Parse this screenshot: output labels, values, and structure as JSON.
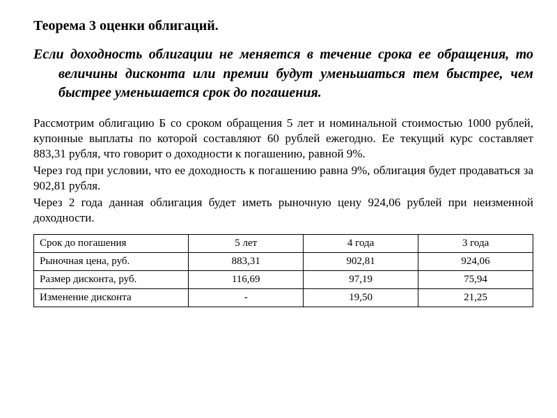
{
  "title": "Теорема 3 оценки облигаций.",
  "theorem": "Если доходность облигации не меняется в течение срока ее обращения, то величины дисконта или премии будут уменьшаться тем быстрее, чем быстрее уменьшается срок до погашения.",
  "paragraphs": [
    "Рассмотрим облигацию Б со сроком обращения 5 лет и номинальной стоимостью 1000 рублей, купонные выплаты по которой составляют 60 рублей ежегодно. Ее текущий курс составляет 883,31 рубля, что говорит о доходности к погашению, равной 9%.",
    "Через год при условии, что ее доходность к погашению равна 9%, облигация будет продаваться за 902,81 рубля.",
    "Через 2 года данная облигация будет иметь рыночную цену 924,06 рублей при неизменной доходности."
  ],
  "table": {
    "columns": [
      "Срок до погашения",
      "5 лет",
      "4 года",
      "3 года"
    ],
    "rows": [
      [
        "Рыночная цена, руб.",
        "883,31",
        "902,81",
        "924,06"
      ],
      [
        "Размер дисконта, руб.",
        "116,69",
        "97,19",
        "75,94"
      ],
      [
        "Изменение дисконта",
        "-",
        "19,50",
        "21,25"
      ]
    ],
    "border_color": "#000000",
    "header_fontweight": "normal",
    "cell_fontsize": 15,
    "column_widths_pct": [
      31,
      23,
      23,
      23
    ]
  },
  "style": {
    "background_color": "#ffffff",
    "text_color": "#000000",
    "title_fontsize": 20,
    "theorem_fontsize": 20,
    "body_fontsize": 17,
    "font_family": "Times New Roman"
  }
}
